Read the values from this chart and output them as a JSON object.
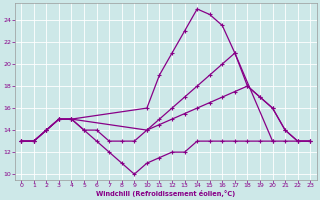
{
  "xlabel": "Windchill (Refroidissement éolien,°C)",
  "xlim": [
    -0.5,
    23.5
  ],
  "ylim": [
    9.5,
    25.5
  ],
  "yticks": [
    10,
    12,
    14,
    16,
    18,
    20,
    22,
    24
  ],
  "xticks": [
    0,
    1,
    2,
    3,
    4,
    5,
    6,
    7,
    8,
    9,
    10,
    11,
    12,
    13,
    14,
    15,
    16,
    17,
    18,
    19,
    20,
    21,
    22,
    23
  ],
  "background_color": "#cde8e8",
  "line_color": "#880088",
  "grid_color": "#aacccc",
  "lines": [
    {
      "x": [
        0,
        1,
        2,
        3,
        4,
        10,
        11,
        12,
        13,
        14,
        15,
        16,
        17,
        20
      ],
      "y": [
        13,
        13,
        14,
        15,
        15,
        16,
        19,
        21,
        23,
        25,
        24.5,
        23.5,
        21,
        13
      ]
    },
    {
      "x": [
        0,
        1,
        2,
        3,
        4,
        10,
        11,
        12,
        13,
        14,
        15,
        16,
        17,
        18,
        19,
        20,
        21,
        22,
        23
      ],
      "y": [
        13,
        13,
        14,
        15,
        15,
        14,
        15,
        16,
        17,
        18,
        19,
        20,
        21,
        18,
        17,
        16,
        14,
        13,
        13
      ]
    },
    {
      "x": [
        0,
        1,
        2,
        3,
        4,
        5,
        6,
        7,
        8,
        9,
        10,
        11,
        12,
        13,
        14,
        15,
        16,
        17,
        18,
        19,
        20,
        21,
        22,
        23
      ],
      "y": [
        13,
        13,
        14,
        15,
        15,
        14,
        14,
        13,
        13,
        13,
        14,
        14.5,
        15,
        15.5,
        16,
        16.5,
        17,
        17.5,
        18,
        17,
        16,
        14,
        13,
        13
      ]
    },
    {
      "x": [
        0,
        1,
        2,
        3,
        4,
        5,
        6,
        7,
        8,
        9,
        10,
        11,
        12,
        13,
        14,
        15,
        16,
        17,
        18,
        19,
        20,
        21,
        22,
        23
      ],
      "y": [
        13,
        13,
        14,
        15,
        15,
        14,
        13,
        12,
        11,
        10,
        11,
        11.5,
        12,
        12,
        13,
        13,
        13,
        13,
        13,
        13,
        13,
        13,
        13,
        13
      ]
    }
  ]
}
